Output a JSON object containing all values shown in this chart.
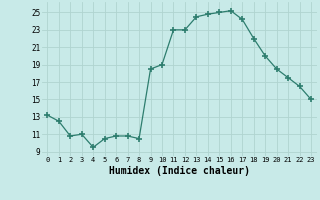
{
  "x": [
    0,
    1,
    2,
    3,
    4,
    5,
    6,
    7,
    8,
    9,
    10,
    11,
    12,
    13,
    14,
    15,
    16,
    17,
    18,
    19,
    20,
    21,
    22,
    23
  ],
  "y": [
    13.2,
    12.5,
    10.8,
    11.0,
    9.5,
    10.5,
    10.8,
    10.8,
    10.5,
    18.5,
    19.0,
    23.0,
    23.0,
    24.5,
    24.8,
    25.0,
    25.2,
    24.2,
    22.0,
    20.0,
    18.5,
    17.5,
    16.5,
    15.0
  ],
  "line_color": "#2d7d6e",
  "marker": "+",
  "marker_color": "#2d7d6e",
  "bg_color": "#c8eae8",
  "grid_color": "#b0d4d0",
  "xlabel": "Humidex (Indice chaleur)",
  "xlabel_fontsize": 7,
  "xtick_labels": [
    "0",
    "1",
    "2",
    "3",
    "4",
    "5",
    "6",
    "7",
    "8",
    "9",
    "10",
    "11",
    "12",
    "13",
    "14",
    "15",
    "16",
    "17",
    "18",
    "19",
    "20",
    "21",
    "22",
    "23"
  ],
  "ytick_values": [
    9,
    11,
    13,
    15,
    17,
    19,
    21,
    23,
    25
  ],
  "ylim": [
    8.5,
    26.2
  ],
  "xlim": [
    -0.5,
    23.5
  ]
}
